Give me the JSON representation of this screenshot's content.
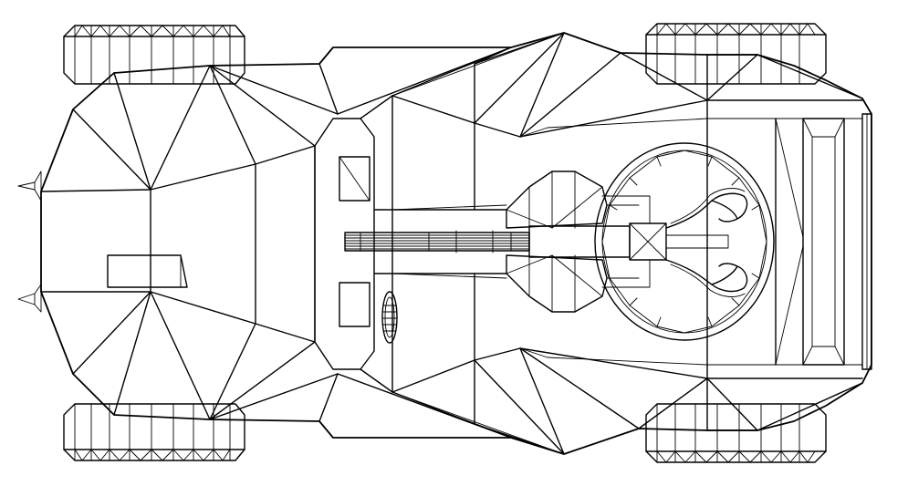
{
  "drawing": {
    "subject": "vehicle-wireframe-top-view",
    "line_color": "#000000",
    "background_color": "#ffffff"
  }
}
